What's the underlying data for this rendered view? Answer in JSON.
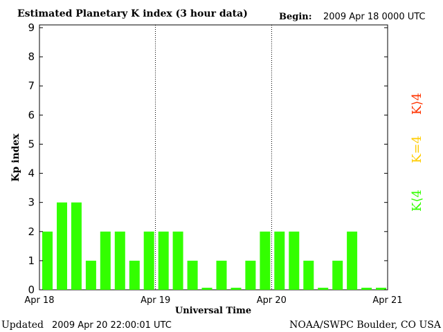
{
  "header": {
    "title": "Estimated Planetary K index (3 hour data)",
    "begin_label": "Begin:",
    "begin_value": "2009 Apr 18 0000 UTC"
  },
  "footer": {
    "updated_label": "Updated",
    "updated_value": "2009 Apr 20 22:00:01 UTC",
    "source": "NOAA/SWPC Boulder, CO USA"
  },
  "legend": {
    "high": "K⟩4",
    "mid": "K=4",
    "low": "K⟨4"
  },
  "colors": {
    "bar_low": "#33ff00",
    "legend_high": "#ff3300",
    "legend_mid": "#ffcc00",
    "legend_low": "#33ff00",
    "axis": "#000000"
  },
  "chart_data": {
    "type": "bar",
    "title": "Estimated Planetary K index (3 hour data)",
    "xlabel": "Universal Time",
    "ylabel": "Kp index",
    "ylim": [
      0,
      9
    ],
    "yticks": [
      "0",
      "1",
      "2",
      "3",
      "4",
      "5",
      "6",
      "7",
      "8",
      "9"
    ],
    "x_day_labels": [
      "Apr 18",
      "Apr 19",
      "Apr 20",
      "Apr 21"
    ],
    "interval_hours": 3,
    "values": [
      2,
      3,
      3,
      1,
      2,
      2,
      1,
      2,
      2,
      2,
      1,
      0,
      1,
      0,
      1,
      2,
      2,
      2,
      1,
      0,
      1,
      2,
      0,
      0
    ]
  }
}
